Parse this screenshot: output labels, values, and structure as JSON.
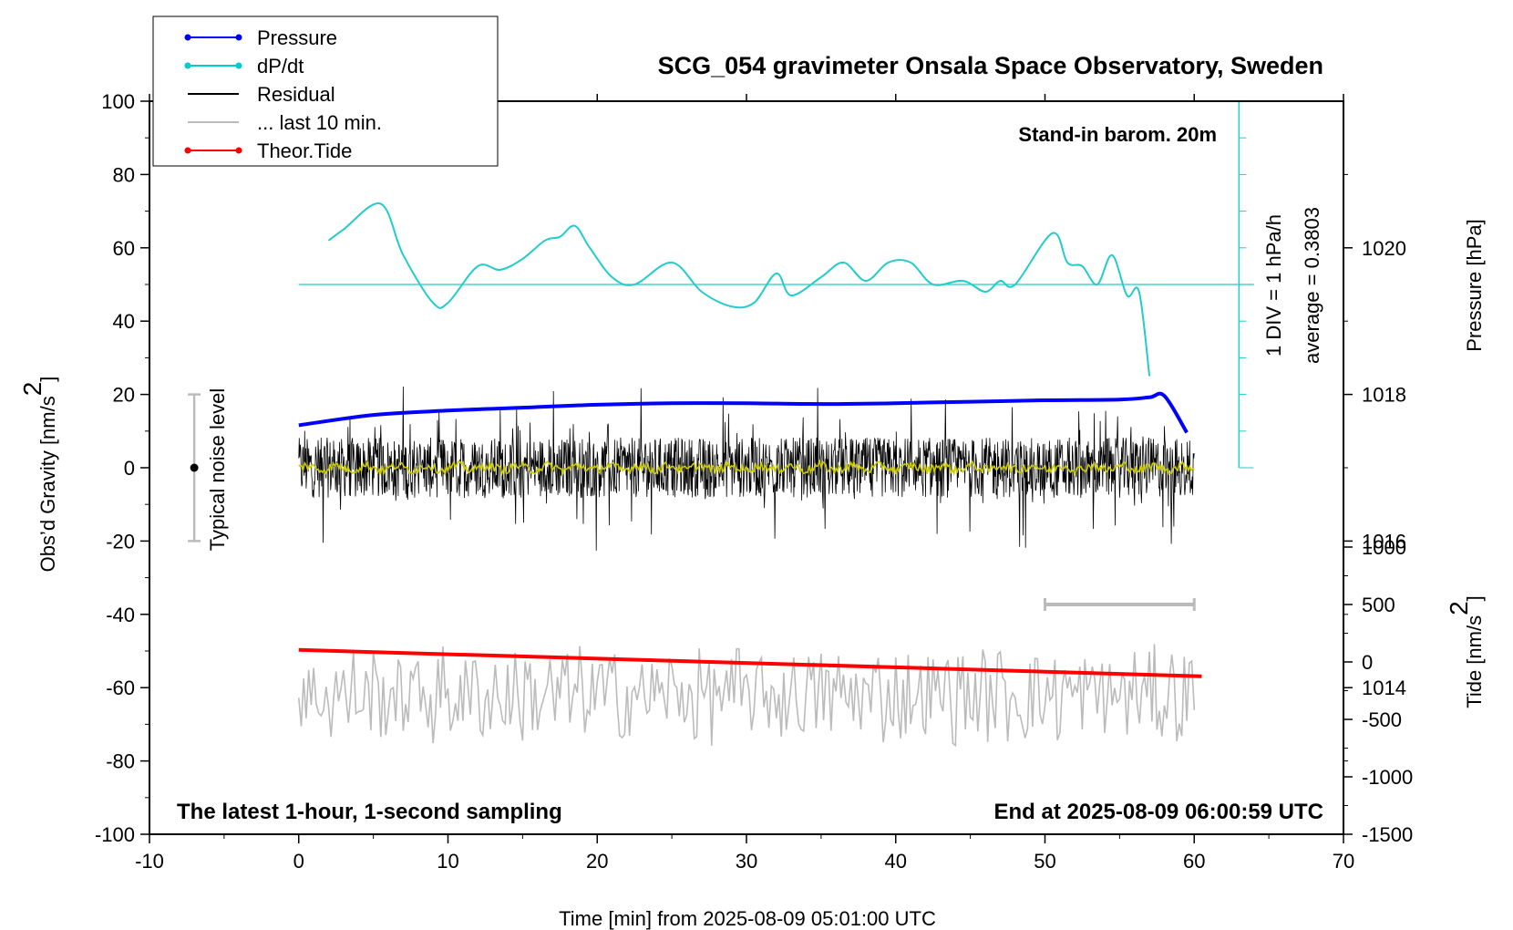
{
  "chart_data": {
    "type": "line",
    "title": "SCG_054 gravimeter Onsala Space Observatory, Sweden",
    "annotations": {
      "top_right": "Stand-in barom. 20m",
      "bottom_left": "The latest 1-hour, 1-second sampling",
      "bottom_right": "End at 2025-08-09 06:00:59 UTC",
      "noise_label": "Typical noise level",
      "dpdt_scale": "1 DIV = 1 hPa/h",
      "dpdt_average": "average = 0.3803"
    },
    "xlabel": "Time [min] from 2025-08-09 05:01:00 UTC",
    "ylabel_left_main": "Obs’d Gravity [nm/s",
    "ylabel_left_sup": "2",
    "ylabel_left_tail": "]",
    "ylabel_right_pressure": "Pressure [hPa]",
    "ylabel_right_tide_main": "Tide [nm/s",
    "ylabel_right_tide_sup": "2",
    "ylabel_right_tide_tail": "]",
    "xlim": [
      -10,
      70
    ],
    "ylim": [
      -100,
      100
    ],
    "pressure_ylim": [
      1012,
      1022
    ],
    "tide_ylim": [
      -1500,
      1500
    ],
    "x_ticks": [
      "-10",
      "0",
      "10",
      "20",
      "30",
      "40",
      "50",
      "60",
      "70"
    ],
    "y_ticks": [
      "100",
      "80",
      "60",
      "40",
      "20",
      "0",
      "-20",
      "-40",
      "-60",
      "-80",
      "-100"
    ],
    "pressure_ticks": [
      "1020",
      "1018",
      "1016",
      "1014"
    ],
    "tide_ticks": [
      "1000",
      "500",
      "0",
      "-500",
      "-1000",
      "-1500"
    ],
    "legend": [
      {
        "name": "Pressure",
        "color": "#0000ff",
        "marker": "dot"
      },
      {
        "name": "dP/dt",
        "color": "#00cccc",
        "marker": "dot"
      },
      {
        "name": "Residual",
        "color": "#000000",
        "marker": "none"
      },
      {
        "name": "... last 10 min.",
        "color": "#bbbbbb",
        "marker": "none"
      },
      {
        "name": "Theor.Tide",
        "color": "#ff0000",
        "marker": "dot"
      }
    ],
    "colors": {
      "pressure": "#0000ff",
      "dpdt": "#22cccc",
      "residual": "#000000",
      "residual_smooth": "#cccc00",
      "last10": "#bbbbbb",
      "tide": "#ff0000"
    },
    "pressure_series": {
      "name": "Pressure",
      "x": [
        0,
        5,
        10,
        15,
        20,
        25,
        30,
        35,
        40,
        45,
        50,
        55,
        57,
        58,
        59.5
      ],
      "y": [
        1017.58,
        1017.72,
        1017.78,
        1017.82,
        1017.86,
        1017.88,
        1017.88,
        1017.87,
        1017.88,
        1017.9,
        1017.92,
        1017.93,
        1017.96,
        1017.98,
        1017.48
      ]
    },
    "dpdt_series": {
      "name": "dP/dt",
      "x": [
        2,
        3,
        5.5,
        7,
        9,
        10,
        12,
        13.5,
        15,
        16.5,
        17.5,
        18.5,
        19.5,
        21,
        22.5,
        25,
        27,
        29,
        30.5,
        32,
        33,
        35,
        36.5,
        38,
        39.5,
        41,
        42.5,
        44.5,
        46,
        47,
        48,
        50.5,
        51.5,
        52.5,
        53.5,
        54.5,
        55.5,
        56.3,
        57
      ],
      "y": [
        62,
        65,
        72,
        58,
        45,
        45,
        55,
        54,
        57,
        62,
        63,
        66,
        60,
        52,
        50,
        56,
        48,
        44,
        45,
        53,
        47,
        52,
        56,
        51,
        56,
        56,
        50,
        51,
        48,
        51,
        50,
        64,
        56,
        55,
        50,
        58,
        47,
        48,
        25
      ]
    },
    "dpdt_reference": {
      "y": 50,
      "average": 0.3803
    },
    "tide_series": {
      "name": "Theor.Tide",
      "x": [
        0,
        60.5
      ],
      "y": [
        105,
        -125
      ]
    },
    "residual_series": {
      "name": "Residual",
      "x_range": [
        0,
        60
      ],
      "amplitude_nm_s2": 15
    },
    "last10_series": {
      "name": "... last 10 min.",
      "x_range": [
        0,
        60
      ],
      "center_nm_s2": -62,
      "amplitude_nm_s2": 12
    },
    "noise_bar": {
      "x": -7,
      "ymin": -20,
      "ymax": 20
    },
    "window_marker": {
      "x1": 50,
      "x2": 60,
      "tide_value": 500
    }
  }
}
